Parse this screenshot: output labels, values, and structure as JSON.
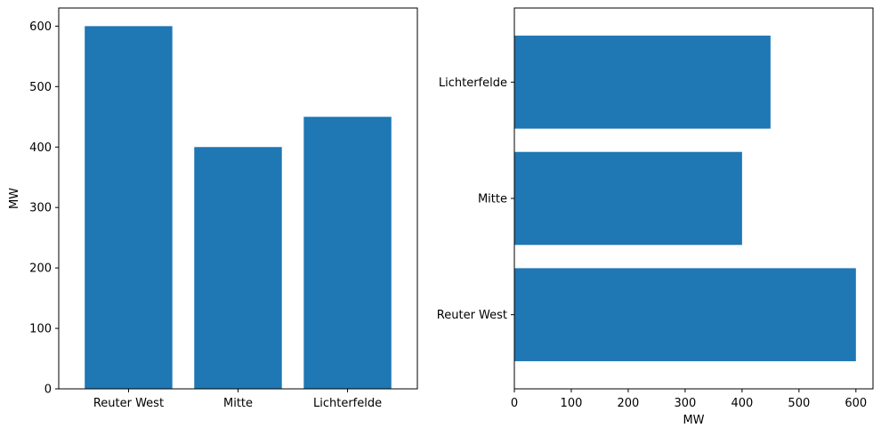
{
  "chart_data": [
    {
      "type": "bar",
      "orientation": "vertical",
      "categories": [
        "Reuter West",
        "Mitte",
        "Lichterfelde"
      ],
      "values": [
        600,
        400,
        450
      ],
      "title": "",
      "xlabel": "",
      "ylabel": "MW",
      "ylim": [
        0,
        630
      ],
      "yticks": [
        0,
        100,
        200,
        300,
        400,
        500,
        600
      ],
      "grid": false,
      "color": "#1f77b4"
    },
    {
      "type": "bar",
      "orientation": "horizontal",
      "categories": [
        "Reuter West",
        "Mitte",
        "Lichterfelde"
      ],
      "values": [
        600,
        400,
        450
      ],
      "title": "",
      "xlabel": "MW",
      "ylabel": "",
      "xlim": [
        0,
        630
      ],
      "xticks": [
        0,
        100,
        200,
        300,
        400,
        500,
        600
      ],
      "grid": false,
      "color": "#1f77b4"
    }
  ]
}
